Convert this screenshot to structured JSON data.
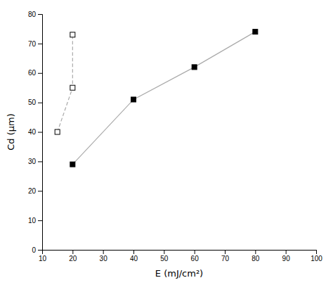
{
  "chart_data": {
    "type": "line",
    "xlabel": "E (mJ/cm²)",
    "ylabel": "Cd (μm)",
    "series": [
      {
        "x": [
          15,
          20,
          20
        ],
        "values": [
          40,
          55,
          73
        ],
        "color": "#aaaaaa",
        "marker": "open-square",
        "line_style": "dashed"
      },
      {
        "x": [
          20,
          40,
          60,
          80
        ],
        "values": [
          29,
          51,
          62,
          74
        ],
        "color": "#aaaaaa",
        "marker": "square",
        "line_style": "solid"
      }
    ],
    "xlim": [
      10,
      100
    ],
    "ylim": [
      0,
      80
    ],
    "xticks": [
      10,
      20,
      30,
      40,
      50,
      60,
      70,
      80,
      90,
      100
    ],
    "yticks": [
      0,
      10,
      20,
      30,
      40,
      50,
      60,
      70,
      80
    ],
    "grid": false
  }
}
